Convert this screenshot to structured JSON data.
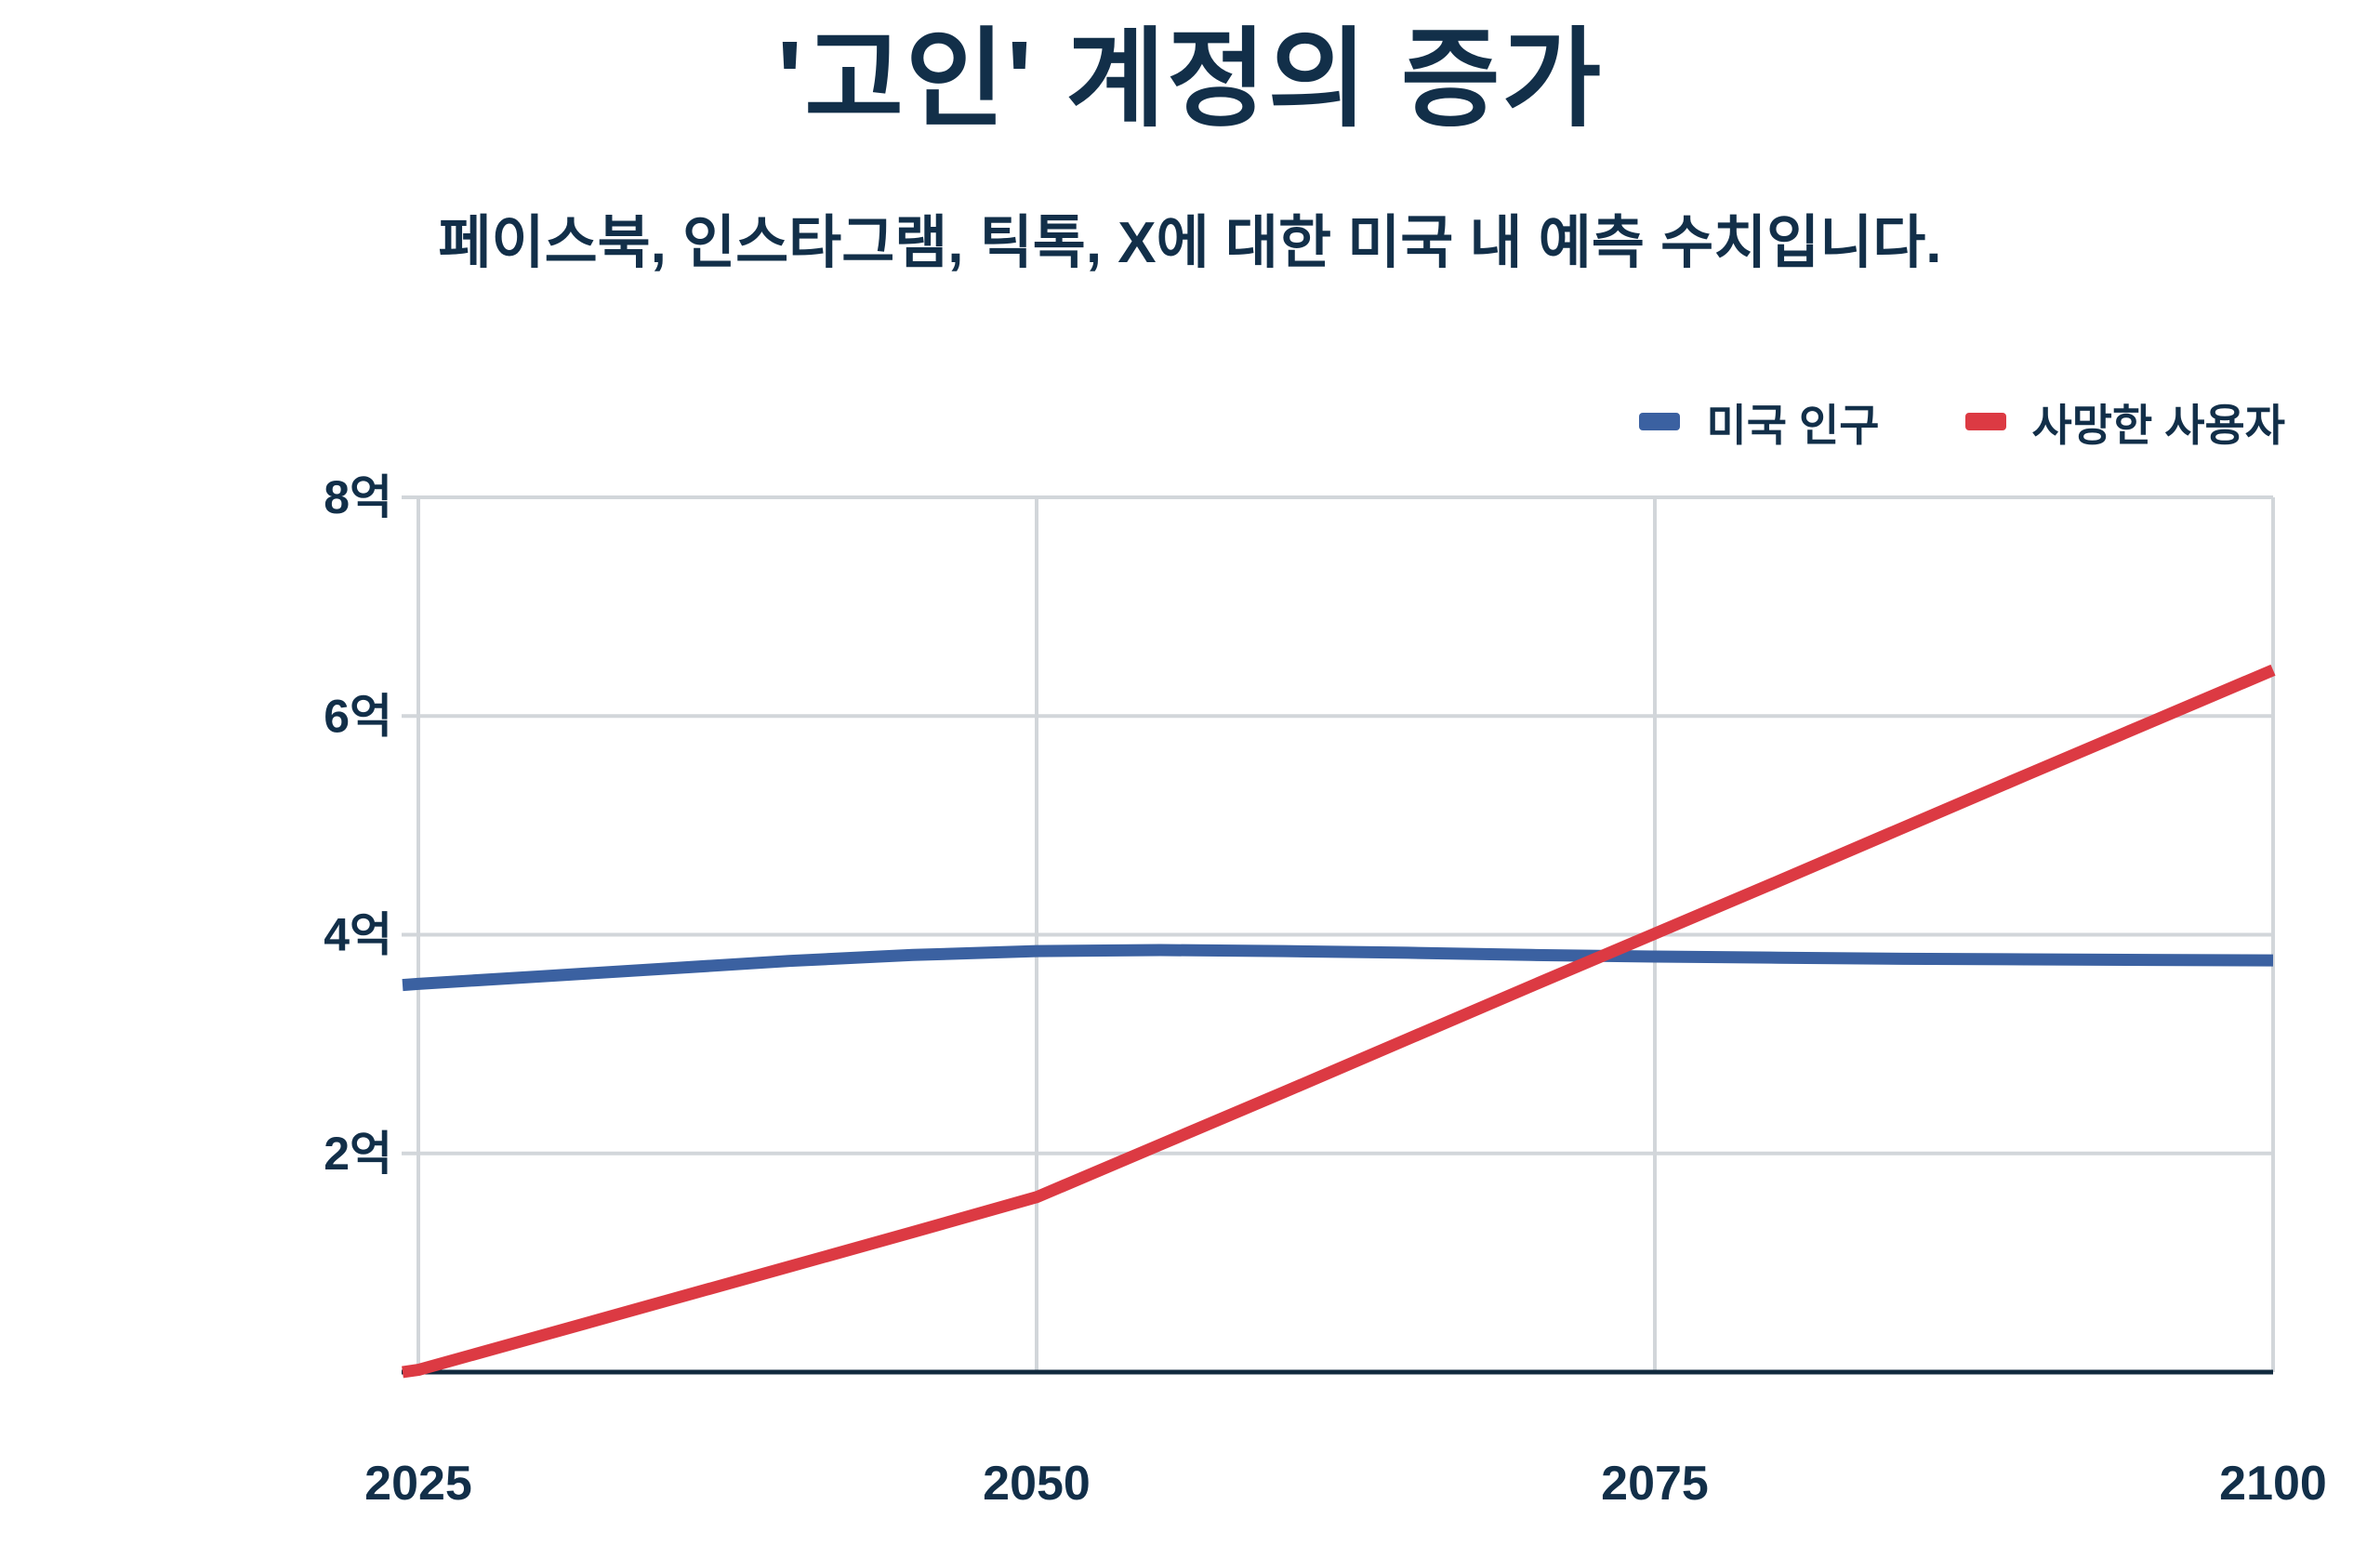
{
  "title": "'고인' 계정의 증가",
  "subtitle": "페이스북, 인스타그램, 틱톡, X에 대한 미국 내 예측 수치입니다.",
  "colors": {
    "ink": "#122f49",
    "background": "#ffffff",
    "grid": "#d2d6da",
    "baseline_axis": "#112a3e",
    "us_population": "#3b61a1",
    "deceased_users": "#dc3a43"
  },
  "legend": {
    "items": [
      {
        "label": "미국 인구",
        "color": "#3b61a1"
      },
      {
        "label": "사망한 사용자",
        "color": "#dc3a43"
      }
    ],
    "position": "top-right"
  },
  "chart_data": {
    "type": "line",
    "title": "'고인' 계정의 증가",
    "subtitle": "페이스북, 인스타그램, 틱톡, X에 대한 미국 내 예측 수치입니다.",
    "unit": "억 (hundreds of millions of accounts)",
    "x": [
      2025,
      2050,
      2075,
      2100
    ],
    "x_tick_labels": [
      "2025",
      "2050",
      "2075",
      "2100"
    ],
    "y_ticks": [
      {
        "value": 2,
        "label": "2억"
      },
      {
        "value": 4,
        "label": "4억"
      },
      {
        "value": 6,
        "label": "6억"
      },
      {
        "value": 8,
        "label": "8억"
      }
    ],
    "xlim": [
      2025,
      2100
    ],
    "ylim": [
      0,
      8
    ],
    "grid": true,
    "legend_position": "top-right",
    "series": [
      {
        "name": "미국 인구",
        "color": "#3b61a1",
        "values": [
          3.55,
          3.85,
          3.8,
          3.77
        ],
        "points": [
          [
            2024.36,
            3.54
          ],
          [
            2025,
            3.55
          ],
          [
            2030,
            3.62
          ],
          [
            2035,
            3.69
          ],
          [
            2040,
            3.76
          ],
          [
            2045,
            3.815
          ],
          [
            2050,
            3.85
          ],
          [
            2055,
            3.86
          ],
          [
            2060,
            3.85
          ],
          [
            2065,
            3.835
          ],
          [
            2070,
            3.815
          ],
          [
            2075,
            3.8
          ],
          [
            2080,
            3.79
          ],
          [
            2085,
            3.78
          ],
          [
            2090,
            3.775
          ],
          [
            2095,
            3.77
          ],
          [
            2100,
            3.765
          ]
        ]
      },
      {
        "name": "사망한 사용자",
        "color": "#dc3a43",
        "values": [
          0.02,
          1.6,
          4.0,
          6.4
        ],
        "points": [
          [
            2024.36,
            0.0
          ],
          [
            2025,
            0.02
          ],
          [
            2030,
            0.335
          ],
          [
            2035,
            0.65
          ],
          [
            2040,
            0.965
          ],
          [
            2045,
            1.28
          ],
          [
            2050,
            1.6
          ],
          [
            2055,
            2.08
          ],
          [
            2060,
            2.56
          ],
          [
            2065,
            3.045
          ],
          [
            2070,
            3.53
          ],
          [
            2075,
            4.01
          ],
          [
            2080,
            4.49
          ],
          [
            2085,
            4.975
          ],
          [
            2090,
            5.46
          ],
          [
            2095,
            5.94
          ],
          [
            2100,
            6.42
          ]
        ]
      }
    ]
  }
}
